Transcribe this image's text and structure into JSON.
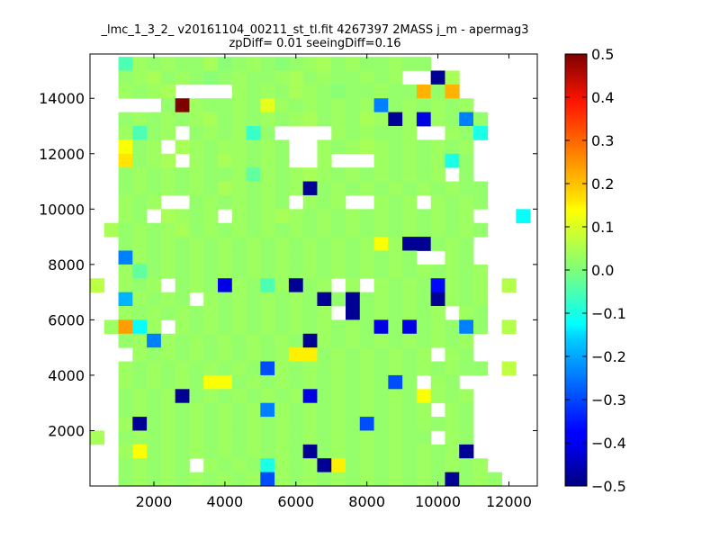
{
  "chart_data": {
    "type": "heatmap",
    "title": "_lmc_1_3_2_ v20161104_00211_st_tl.fit 4267397 2MASS j_m - apermag3",
    "subtitle": "zpDiff= 0.01 seeingDiff=0.16",
    "xlabel": "",
    "ylabel": "",
    "xlim": [
      200,
      12800
    ],
    "ylim": [
      0,
      15600
    ],
    "x_ticks": [
      2000,
      4000,
      6000,
      8000,
      10000,
      12000
    ],
    "y_ticks": [
      2000,
      4000,
      6000,
      8000,
      10000,
      12000,
      14000
    ],
    "colorbar": {
      "colormap": "jet",
      "range": [
        -0.5,
        0.5
      ],
      "ticks": [
        -0.5,
        -0.4,
        -0.3,
        -0.2,
        -0.1,
        0.0,
        0.1,
        0.2,
        0.3,
        0.4,
        0.5
      ]
    },
    "grid": false,
    "bin_origin": [
      200,
      0
    ],
    "bin_size": [
      400,
      500
    ],
    "columns": 31,
    "rows": 31,
    "empty_value": "",
    "rows_encoded_note": "",
    "cells": [
      [
        null,
        null,
        -0.05,
        0.03,
        0.02,
        0.03,
        0.02,
        0.02,
        0.04,
        0.01,
        0.02,
        0.03,
        0.02,
        0.01,
        0.02,
        0.03,
        0.04,
        0.02,
        0.03,
        0.02,
        0.02,
        0.03,
        0.02,
        0.02,
        null,
        null,
        null,
        null,
        null,
        null,
        null
      ],
      [
        null,
        null,
        0.02,
        0.03,
        0.04,
        0.02,
        0.03,
        0.02,
        0.01,
        0.02,
        0.03,
        0.02,
        0.02,
        0.03,
        0.04,
        0.02,
        0.03,
        0.02,
        0.02,
        0.03,
        0.02,
        0.03,
        null,
        null,
        -0.48,
        0.04,
        null,
        null,
        null,
        null,
        null
      ],
      [
        null,
        null,
        0.03,
        0.02,
        0.03,
        0.04,
        null,
        null,
        null,
        null,
        0.03,
        0.02,
        0.03,
        0.02,
        0.04,
        0.03,
        0.02,
        0.01,
        0.02,
        0.02,
        0.03,
        0.02,
        0.02,
        0.2,
        0.02,
        0.2,
        null,
        null,
        null,
        null,
        null
      ],
      [
        null,
        null,
        null,
        null,
        null,
        0.02,
        0.5,
        0.03,
        0.02,
        0.02,
        0.03,
        0.02,
        0.1,
        0.03,
        0.02,
        0.03,
        0.02,
        0.03,
        0.02,
        0.03,
        -0.25,
        0.02,
        0.03,
        0.02,
        0.03,
        0.02,
        0.03,
        null,
        null,
        null,
        null
      ],
      [
        null,
        null,
        0.02,
        0.03,
        0.02,
        0.03,
        0.02,
        0.03,
        0.04,
        0.02,
        0.03,
        0.02,
        0.03,
        0.02,
        0.03,
        0.04,
        0.02,
        0.03,
        0.02,
        0.04,
        0.03,
        -0.48,
        0.03,
        -0.4,
        0.03,
        0.02,
        -0.25,
        0.02,
        null,
        null,
        null
      ],
      [
        null,
        null,
        0.03,
        -0.05,
        0.02,
        0.03,
        null,
        0.02,
        0.03,
        0.02,
        0.03,
        -0.07,
        0.02,
        null,
        null,
        null,
        null,
        0.03,
        0.02,
        0.03,
        0.02,
        0.02,
        0.03,
        null,
        null,
        0.03,
        0.02,
        -0.1,
        null,
        null,
        null
      ],
      [
        null,
        null,
        0.12,
        0.02,
        0.03,
        null,
        0.04,
        0.03,
        0.02,
        0.03,
        0.03,
        0.02,
        0.03,
        0.02,
        null,
        null,
        0.03,
        0.02,
        0.03,
        0.04,
        0.03,
        0.02,
        0.03,
        0.02,
        0.03,
        0.02,
        0.03,
        null,
        null,
        null,
        null
      ],
      [
        null,
        null,
        0.15,
        0.02,
        0.03,
        0.04,
        null,
        0.03,
        0.02,
        0.04,
        0.03,
        0.02,
        0.03,
        0.02,
        null,
        null,
        0.03,
        null,
        null,
        null,
        0.03,
        0.02,
        0.03,
        0.02,
        0.03,
        -0.1,
        0.02,
        null,
        null,
        null,
        null
      ],
      [
        null,
        null,
        0.02,
        0.03,
        0.02,
        0.03,
        0.02,
        0.03,
        0.02,
        0.02,
        0.03,
        -0.03,
        0.03,
        0.02,
        0.03,
        0.04,
        0.03,
        0.02,
        0.03,
        0.02,
        0.03,
        0.02,
        0.03,
        0.02,
        0.03,
        null,
        0.02,
        null,
        null,
        null,
        null
      ],
      [
        null,
        null,
        0.02,
        0.03,
        0.02,
        0.03,
        0.02,
        0.03,
        0.02,
        0.04,
        0.03,
        0.02,
        0.03,
        0.02,
        0.03,
        -0.48,
        0.02,
        0.03,
        0.02,
        0.03,
        0.02,
        0.03,
        0.02,
        0.03,
        0.02,
        0.03,
        0.02,
        0.02,
        null,
        null,
        null
      ],
      [
        null,
        null,
        0.03,
        0.02,
        0.03,
        null,
        null,
        0.02,
        0.03,
        0.02,
        0.03,
        0.02,
        0.03,
        0.02,
        null,
        0.03,
        0.02,
        0.03,
        null,
        null,
        0.03,
        0.02,
        0.03,
        null,
        0.03,
        0.02,
        0.03,
        0.02,
        null,
        null,
        null
      ],
      [
        null,
        null,
        0.03,
        0.02,
        null,
        0.04,
        0.03,
        0.02,
        0.03,
        null,
        0.03,
        0.02,
        0.03,
        0.04,
        0.03,
        0.02,
        0.03,
        0.02,
        0.03,
        0.02,
        0.03,
        0.02,
        0.03,
        0.02,
        0.03,
        0.02,
        0.03,
        null,
        null,
        null,
        -0.12
      ],
      [
        null,
        0.04,
        0.02,
        0.03,
        0.02,
        0.03,
        0.04,
        0.02,
        0.03,
        0.02,
        0.03,
        0.02,
        0.03,
        0.02,
        0.03,
        0.02,
        0.03,
        0.02,
        0.03,
        0.02,
        0.03,
        0.02,
        0.03,
        0.02,
        0.03,
        0.02,
        0.03,
        0.02,
        null,
        null,
        null
      ],
      [
        null,
        null,
        0.02,
        0.03,
        0.02,
        0.03,
        0.02,
        0.03,
        0.02,
        0.03,
        0.02,
        0.03,
        0.02,
        0.03,
        0.02,
        0.03,
        0.02,
        0.03,
        0.02,
        0.03,
        0.12,
        0.03,
        -0.48,
        -0.48,
        0.02,
        0.03,
        0.02,
        null,
        null,
        null,
        null
      ],
      [
        null,
        null,
        -0.25,
        0.03,
        0.02,
        0.03,
        0.02,
        0.03,
        0.02,
        0.03,
        0.02,
        0.03,
        0.02,
        0.03,
        0.02,
        0.03,
        0.02,
        0.03,
        0.02,
        0.03,
        0.02,
        0.03,
        0.02,
        null,
        null,
        0.03,
        0.02,
        null,
        null,
        null,
        null
      ],
      [
        null,
        null,
        0.03,
        -0.03,
        0.02,
        0.03,
        0.02,
        0.03,
        0.02,
        0.03,
        0.02,
        0.03,
        0.02,
        0.03,
        0.02,
        0.03,
        0.02,
        0.03,
        0.02,
        0.03,
        0.02,
        0.03,
        0.02,
        0.03,
        0.02,
        0.03,
        0.02,
        0.03,
        null,
        null,
        null
      ],
      [
        0.06,
        null,
        0.03,
        0.02,
        0.03,
        null,
        0.02,
        0.03,
        0.02,
        -0.4,
        0.03,
        0.02,
        -0.05,
        0.03,
        -0.48,
        0.02,
        0.03,
        null,
        0.03,
        null,
        0.03,
        0.02,
        0.03,
        0.02,
        -0.37,
        0.03,
        0.02,
        0.03,
        null,
        0.05,
        null
      ],
      [
        null,
        null,
        -0.2,
        0.03,
        0.02,
        0.03,
        0.02,
        null,
        0.03,
        0.02,
        0.03,
        0.02,
        0.03,
        0.02,
        0.03,
        0.02,
        -0.48,
        0.02,
        -0.48,
        0.02,
        0.03,
        0.02,
        0.03,
        0.02,
        -0.48,
        0.03,
        0.02,
        0.03,
        null,
        null,
        null
      ],
      [
        null,
        null,
        0.03,
        0.02,
        0.03,
        0.02,
        0.03,
        0.02,
        0.03,
        0.02,
        0.03,
        0.02,
        0.03,
        0.02,
        0.03,
        0.02,
        0.03,
        null,
        -0.48,
        0.02,
        0.03,
        0.02,
        0.03,
        0.02,
        0.03,
        null,
        0.03,
        0.02,
        null,
        null,
        null
      ],
      [
        null,
        0.03,
        0.22,
        -0.12,
        0.03,
        null,
        0.03,
        0.02,
        0.03,
        0.02,
        0.03,
        0.02,
        0.03,
        0.02,
        0.03,
        0.02,
        0.03,
        0.02,
        0.03,
        0.02,
        -0.4,
        0.02,
        -0.4,
        0.02,
        0.03,
        0.02,
        -0.25,
        0.02,
        null,
        0.05,
        null
      ],
      [
        null,
        null,
        0.02,
        0.03,
        -0.25,
        0.03,
        0.02,
        0.03,
        0.02,
        0.03,
        0.02,
        0.03,
        0.02,
        0.03,
        0.02,
        -0.48,
        0.03,
        0.02,
        0.03,
        0.02,
        0.03,
        0.02,
        0.03,
        0.02,
        0.03,
        0.02,
        0.03,
        null,
        null,
        null,
        null
      ],
      [
        null,
        null,
        null,
        0.03,
        0.02,
        0.03,
        0.02,
        0.03,
        0.02,
        0.03,
        0.02,
        0.03,
        0.02,
        0.03,
        0.14,
        0.14,
        0.02,
        0.03,
        0.02,
        0.03,
        0.02,
        0.03,
        0.02,
        0.03,
        null,
        0.03,
        0.02,
        null,
        null,
        null,
        null
      ],
      [
        null,
        null,
        0.03,
        0.02,
        0.03,
        0.02,
        0.03,
        0.02,
        0.03,
        0.02,
        0.03,
        0.02,
        -0.3,
        0.03,
        0.02,
        0.03,
        0.02,
        0.03,
        0.02,
        0.03,
        0.02,
        0.03,
        0.02,
        0.03,
        0.02,
        0.03,
        0.02,
        0.02,
        null,
        0.06,
        null
      ],
      [
        null,
        null,
        0.03,
        0.02,
        0.03,
        0.02,
        0.03,
        0.02,
        0.12,
        0.12,
        0.02,
        0.03,
        0.02,
        0.03,
        0.02,
        0.03,
        0.02,
        0.03,
        0.02,
        0.03,
        0.02,
        -0.3,
        0.02,
        null,
        0.03,
        0.02,
        null,
        null,
        null,
        null,
        null
      ],
      [
        null,
        null,
        0.02,
        0.03,
        0.02,
        0.03,
        -0.48,
        0.02,
        0.03,
        0.02,
        0.03,
        0.02,
        0.03,
        0.02,
        0.03,
        -0.4,
        0.02,
        0.03,
        0.02,
        0.03,
        0.02,
        0.03,
        0.02,
        0.12,
        0.03,
        0.02,
        0.03,
        null,
        null,
        null,
        null
      ],
      [
        null,
        null,
        0.02,
        0.03,
        0.02,
        0.03,
        0.02,
        0.03,
        0.02,
        0.03,
        0.02,
        0.03,
        -0.25,
        0.03,
        0.02,
        0.03,
        0.02,
        0.03,
        0.02,
        0.03,
        0.02,
        0.03,
        0.02,
        0.03,
        null,
        0.03,
        0.02,
        null,
        null,
        null,
        null
      ],
      [
        null,
        null,
        0.03,
        -0.48,
        0.02,
        0.03,
        0.02,
        0.03,
        0.02,
        0.03,
        0.02,
        0.03,
        0.02,
        0.03,
        0.02,
        0.03,
        0.02,
        0.03,
        0.02,
        -0.3,
        0.02,
        0.03,
        0.02,
        0.03,
        0.02,
        0.03,
        0.02,
        null,
        null,
        null,
        null
      ],
      [
        0.04,
        null,
        0.02,
        0.03,
        0.02,
        0.03,
        0.02,
        0.03,
        0.02,
        0.03,
        0.02,
        0.03,
        0.02,
        0.03,
        0.02,
        0.03,
        0.02,
        0.03,
        0.02,
        0.03,
        0.02,
        0.03,
        0.02,
        0.02,
        null,
        0.03,
        0.02,
        null,
        null,
        null,
        null
      ],
      [
        null,
        null,
        0.03,
        0.12,
        0.02,
        0.03,
        0.02,
        0.03,
        0.02,
        0.03,
        0.02,
        0.03,
        0.02,
        0.03,
        0.02,
        -0.48,
        0.02,
        0.03,
        0.02,
        0.03,
        0.02,
        0.03,
        0.02,
        0.03,
        0.02,
        0.03,
        -0.48,
        null,
        null,
        null,
        null
      ],
      [
        null,
        null,
        0.02,
        0.03,
        0.02,
        0.03,
        0.02,
        null,
        0.03,
        0.02,
        0.03,
        0.02,
        -0.1,
        0.03,
        0.02,
        0.03,
        -0.48,
        0.14,
        0.02,
        0.03,
        0.02,
        0.03,
        0.02,
        0.03,
        0.02,
        0.03,
        0.02,
        0.03,
        null,
        null,
        null
      ],
      [
        null,
        null,
        0.02,
        0.03,
        0.02,
        0.03,
        0.02,
        0.03,
        0.02,
        0.03,
        0.02,
        0.03,
        -0.3,
        0.03,
        0.02,
        0.03,
        0.02,
        0.03,
        0.02,
        0.03,
        0.02,
        0.03,
        0.02,
        0.03,
        0.02,
        -0.48,
        0.02,
        0.03,
        0.02,
        null,
        null
      ]
    ]
  }
}
